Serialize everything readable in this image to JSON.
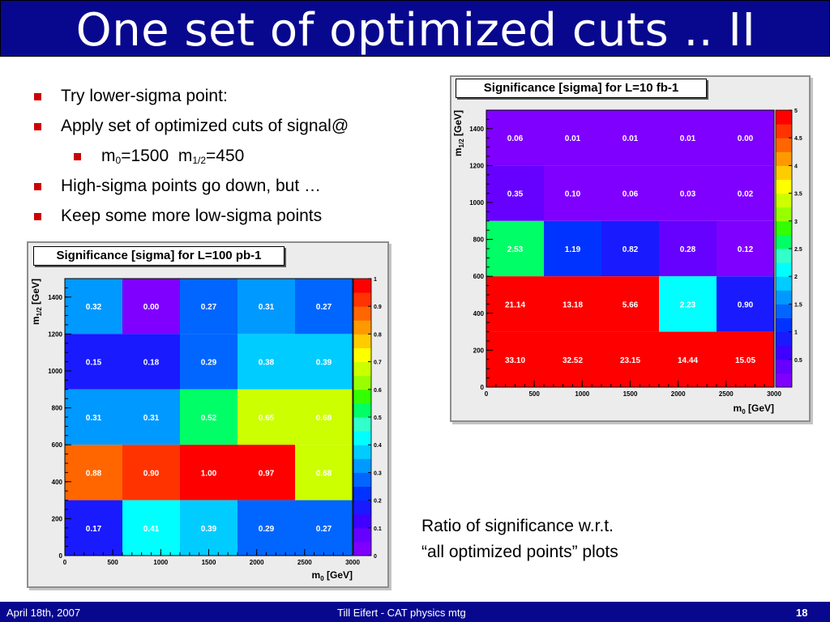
{
  "slide": {
    "title": "One set of optimized cuts .. II"
  },
  "bullets": [
    {
      "level": 1,
      "text": "Try lower-sigma point:"
    },
    {
      "level": 1,
      "text": "Apply set of optimized cuts of signal@"
    },
    {
      "level": 2,
      "text": "m0=1500  m1/2=450",
      "parts": {
        "m0_var": "m",
        "m0_sub": "0",
        "m0_val": "=1500  ",
        "m12_var": "m",
        "m12_sub": "1/2",
        "m12_val": "=450"
      }
    },
    {
      "level": 1,
      "text": "High-sigma points go down, but …"
    },
    {
      "level": 1,
      "text": "Keep some more low-sigma points"
    }
  ],
  "caption": {
    "line1": "Ratio of significance w.r.t.",
    "line2": "“all optimized points” plots"
  },
  "footer": {
    "date": "April 18th, 2007",
    "center": "Till Eifert - CAT physics mtg",
    "page": "18"
  },
  "chart_data": [
    {
      "type": "heatmap",
      "title": "Significance [sigma] for L=100 pb-1",
      "xlabel": "m0 [GeV]",
      "ylabel": "m1/2 [GeV]",
      "xlim": [
        0,
        3000
      ],
      "ylim": [
        0,
        1500
      ],
      "x_ticks": [
        "0",
        "500",
        "1000",
        "1500",
        "2000",
        "2500",
        "3000"
      ],
      "y_ticks": [
        "0",
        "200",
        "400",
        "600",
        "800",
        "1000",
        "1200",
        "1400"
      ],
      "x_bins": [
        0,
        600,
        1200,
        1800,
        2400,
        3000
      ],
      "y_bins": [
        0,
        300,
        600,
        900,
        1200,
        1500
      ],
      "rows": [
        {
          "y_range": [
            1200,
            1500
          ],
          "cells": [
            {
              "v": 0.32,
              "label": "0.32"
            },
            {
              "v": 0.0,
              "label": "0.00"
            },
            {
              "v": 0.27,
              "label": "0.27"
            },
            {
              "v": 0.31,
              "label": "0.31"
            },
            {
              "v": 0.27,
              "label": "0.27"
            }
          ]
        },
        {
          "y_range": [
            900,
            1200
          ],
          "cells": [
            {
              "v": 0.15,
              "label": "0.15"
            },
            {
              "v": 0.18,
              "label": "0.18"
            },
            {
              "v": 0.29,
              "label": "0.29"
            },
            {
              "v": 0.38,
              "label": "0.38"
            },
            {
              "v": 0.39,
              "label": "0.39"
            }
          ]
        },
        {
          "y_range": [
            600,
            900
          ],
          "cells": [
            {
              "v": 0.31,
              "label": "0.31"
            },
            {
              "v": 0.31,
              "label": "0.31"
            },
            {
              "v": 0.52,
              "label": "0.52"
            },
            {
              "v": 0.65,
              "label": "0.65"
            },
            {
              "v": 0.68,
              "label": "0.68"
            }
          ]
        },
        {
          "y_range": [
            300,
            600
          ],
          "cells": [
            {
              "v": 0.88,
              "label": "0.88"
            },
            {
              "v": 0.9,
              "label": "0.90"
            },
            {
              "v": 1.0,
              "label": "1.00"
            },
            {
              "v": 0.97,
              "label": "0.97"
            },
            {
              "v": 0.68,
              "label": "0.68"
            }
          ]
        },
        {
          "y_range": [
            0,
            300
          ],
          "cells": [
            {
              "v": 0.17,
              "label": "0.17"
            },
            {
              "v": 0.41,
              "label": "0.41"
            },
            {
              "v": 0.39,
              "label": "0.39"
            },
            {
              "v": 0.29,
              "label": "0.29"
            },
            {
              "v": 0.27,
              "label": "0.27"
            }
          ]
        }
      ],
      "colorbar": {
        "min": 0,
        "max": 1,
        "ticks": [
          "0",
          "0.1",
          "0.2",
          "0.3",
          "0.4",
          "0.5",
          "0.6",
          "0.7",
          "0.8",
          "0.9",
          "1"
        ]
      }
    },
    {
      "type": "heatmap",
      "title": "Significance [sigma] for L=10 fb-1",
      "xlabel": "m0 [GeV]",
      "ylabel": "m1/2 [GeV]",
      "xlim": [
        0,
        3000
      ],
      "ylim": [
        0,
        1500
      ],
      "x_ticks": [
        "0",
        "500",
        "1000",
        "1500",
        "2000",
        "2500",
        "3000"
      ],
      "y_ticks": [
        "0",
        "200",
        "400",
        "600",
        "800",
        "1000",
        "1200",
        "1400"
      ],
      "x_bins": [
        0,
        600,
        1200,
        1800,
        2400,
        3000
      ],
      "y_bins": [
        0,
        300,
        600,
        900,
        1200,
        1500
      ],
      "rows": [
        {
          "y_range": [
            1200,
            1500
          ],
          "cells": [
            {
              "v": 0.06,
              "label": "0.06"
            },
            {
              "v": 0.01,
              "label": "0.01"
            },
            {
              "v": 0.01,
              "label": "0.01"
            },
            {
              "v": 0.01,
              "label": "0.01"
            },
            {
              "v": 0.0,
              "label": "0.00"
            }
          ]
        },
        {
          "y_range": [
            900,
            1200
          ],
          "cells": [
            {
              "v": 0.35,
              "label": "0.35"
            },
            {
              "v": 0.1,
              "label": "0.10"
            },
            {
              "v": 0.06,
              "label": "0.06"
            },
            {
              "v": 0.03,
              "label": "0.03"
            },
            {
              "v": 0.02,
              "label": "0.02"
            }
          ]
        },
        {
          "y_range": [
            600,
            900
          ],
          "cells": [
            {
              "v": 2.53,
              "label": "2.53"
            },
            {
              "v": 1.19,
              "label": "1.19"
            },
            {
              "v": 0.82,
              "label": "0.82"
            },
            {
              "v": 0.28,
              "label": "0.28"
            },
            {
              "v": 0.12,
              "label": "0.12"
            }
          ]
        },
        {
          "y_range": [
            300,
            600
          ],
          "cells": [
            {
              "v": 21.14,
              "label": "21.14"
            },
            {
              "v": 13.18,
              "label": "13.18"
            },
            {
              "v": 5.66,
              "label": "5.66"
            },
            {
              "v": 2.23,
              "label": "2.23"
            },
            {
              "v": 0.9,
              "label": "0.90"
            }
          ]
        },
        {
          "y_range": [
            0,
            300
          ],
          "cells": [
            {
              "v": 33.1,
              "label": "33.10"
            },
            {
              "v": 32.52,
              "label": "32.52"
            },
            {
              "v": 23.15,
              "label": "23.15"
            },
            {
              "v": 14.44,
              "label": "14.44"
            },
            {
              "v": 15.05,
              "label": "15.05"
            }
          ]
        }
      ],
      "colorbar": {
        "min": 0,
        "max": 5,
        "ticks": [
          "0.5",
          "1",
          "1.5",
          "2",
          "2.5",
          "3",
          "3.5",
          "4",
          "4.5",
          "5"
        ]
      }
    }
  ]
}
